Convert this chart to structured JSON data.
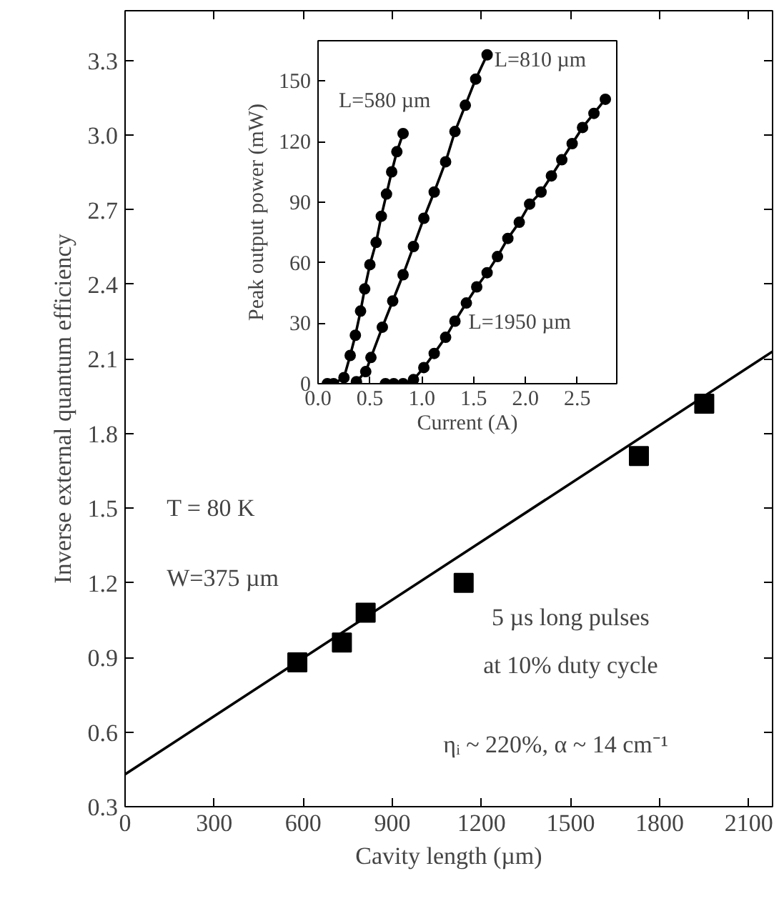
{
  "chart_data": [
    {
      "type": "scatter",
      "xlabel": "Cavity length (µm)",
      "ylabel": "Inverse external quantum efficiency",
      "xlim": [
        0,
        2180
      ],
      "ylim": [
        0.3,
        3.5
      ],
      "xticks": [
        0,
        300,
        600,
        900,
        1200,
        1500,
        1800,
        2100
      ],
      "yticks": [
        {
          "value": 0.3,
          "label": "0.3"
        },
        0.6,
        0.9,
        1.2,
        1.5,
        1.8,
        2.1,
        2.4,
        2.7,
        {
          "value": 3.0,
          "label": "3.0"
        },
        3.3
      ],
      "grid": false,
      "marker": "square",
      "annotations": [
        "T = 80 K",
        "W=375 µm",
        "5 µs long pulses",
        "at 10% duty cycle",
        "ηᵢ ~ 220%, α ~ 14 cm⁻¹"
      ],
      "series": [
        {
          "type": "scatter",
          "color": "#000000",
          "x": [
            580,
            730,
            810,
            1140,
            1730,
            1950
          ],
          "values": [
            0.88,
            0.96,
            1.08,
            1.2,
            1.71,
            1.92
          ]
        },
        {
          "type": "line",
          "marker": "none",
          "color": "#000000",
          "x": [
            0,
            2180
          ],
          "values": [
            0.43,
            2.13
          ]
        }
      ]
    },
    {
      "type": "line",
      "xlabel": "Current (A)",
      "ylabel": "Peak output power (mW)",
      "xlim": [
        0,
        2.88
      ],
      "ylim": [
        0,
        170
      ],
      "xticks": [
        {
          "value": 0,
          "label": "0.0"
        },
        0.5,
        {
          "value": 1,
          "label": "1.0"
        },
        1.5,
        {
          "value": 2,
          "label": "2.0"
        },
        2.5
      ],
      "yticks": [
        0,
        30,
        60,
        90,
        120,
        150
      ],
      "grid": false,
      "marker": "circle",
      "line_style": "solid",
      "series": [
        {
          "name": "L=580 µm",
          "color": "#000000",
          "x": [
            0.09,
            0.15,
            0.25,
            0.31,
            0.36,
            0.41,
            0.45,
            0.5,
            0.56,
            0.61,
            0.66,
            0.71,
            0.76,
            0.82
          ],
          "values": [
            0,
            0,
            3,
            14,
            24,
            36,
            47,
            59,
            70,
            83,
            94,
            105,
            115,
            124
          ]
        },
        {
          "name": "L=810 µm",
          "color": "#000000",
          "x": [
            0.37,
            0.46,
            0.51,
            0.62,
            0.72,
            0.82,
            0.92,
            1.02,
            1.12,
            1.23,
            1.32,
            1.42,
            1.52,
            1.63
          ],
          "values": [
            1,
            6,
            13,
            28,
            41,
            54,
            68,
            82,
            95,
            110,
            125,
            138,
            151,
            163
          ]
        },
        {
          "name": "L=1950 µm",
          "color": "#000000",
          "x": [
            0.65,
            0.73,
            0.82,
            0.92,
            1.02,
            1.12,
            1.23,
            1.32,
            1.43,
            1.53,
            1.63,
            1.73,
            1.83,
            1.94,
            2.04,
            2.15,
            2.25,
            2.35,
            2.45,
            2.55,
            2.66,
            2.77
          ],
          "values": [
            0,
            0,
            0,
            2,
            8,
            15,
            23,
            31,
            40,
            48,
            55,
            63,
            72,
            80,
            89,
            95,
            103,
            111,
            119,
            127,
            134,
            141
          ]
        }
      ]
    }
  ]
}
